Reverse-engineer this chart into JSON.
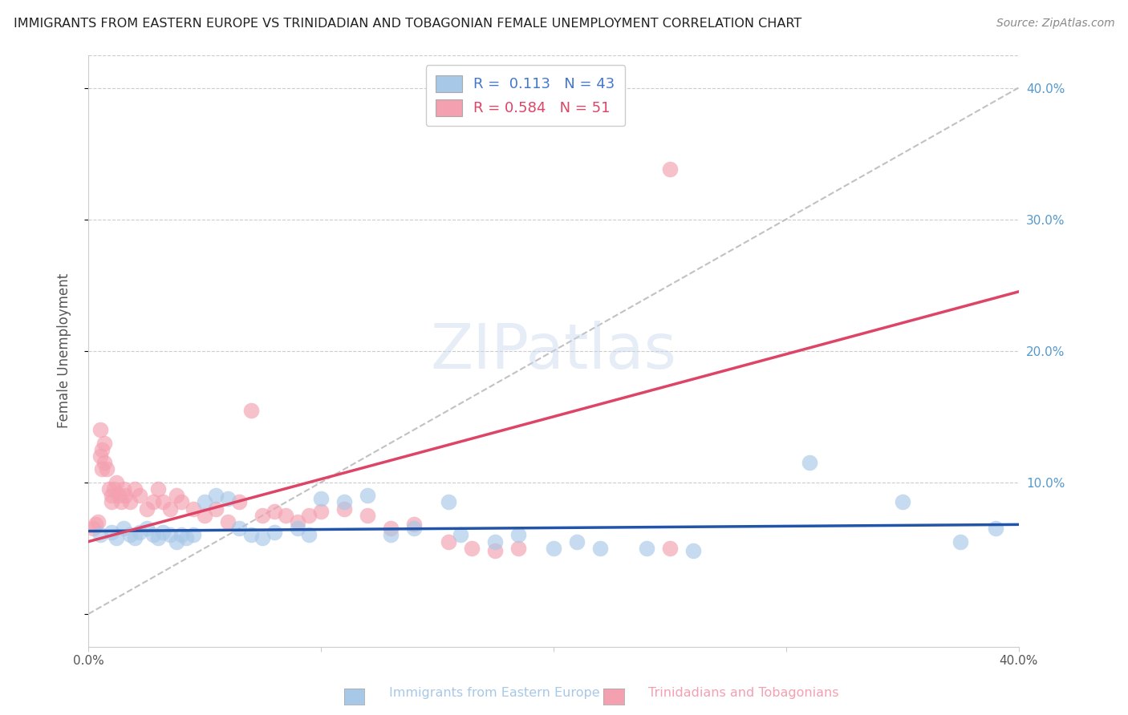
{
  "title": "IMMIGRANTS FROM EASTERN EUROPE VS TRINIDADIAN AND TOBAGONIAN FEMALE UNEMPLOYMENT CORRELATION CHART",
  "source": "Source: ZipAtlas.com",
  "ylabel": "Female Unemployment",
  "x_min": 0.0,
  "x_max": 0.4,
  "y_min": -0.025,
  "y_max": 0.425,
  "color_blue": "#a8c8e8",
  "color_pink": "#f4a0b0",
  "color_blue_line": "#2255aa",
  "color_pink_line": "#dd4466",
  "color_dashed_line": "#bbbbbb",
  "background_color": "#ffffff",
  "grid_color": "#cccccc",
  "title_color": "#222222",
  "right_axis_color": "#5599cc",
  "watermark": "ZIPatlas",
  "blue_x": [
    0.005,
    0.01,
    0.012,
    0.015,
    0.018,
    0.02,
    0.022,
    0.025,
    0.028,
    0.03,
    0.032,
    0.035,
    0.038,
    0.04,
    0.042,
    0.045,
    0.05,
    0.055,
    0.06,
    0.065,
    0.07,
    0.075,
    0.08,
    0.09,
    0.095,
    0.1,
    0.11,
    0.12,
    0.13,
    0.14,
    0.155,
    0.16,
    0.175,
    0.185,
    0.2,
    0.21,
    0.22,
    0.24,
    0.26,
    0.31,
    0.35,
    0.375,
    0.39
  ],
  "blue_y": [
    0.06,
    0.062,
    0.058,
    0.065,
    0.06,
    0.058,
    0.062,
    0.065,
    0.06,
    0.058,
    0.062,
    0.06,
    0.055,
    0.06,
    0.058,
    0.06,
    0.085,
    0.09,
    0.088,
    0.065,
    0.06,
    0.058,
    0.062,
    0.065,
    0.06,
    0.088,
    0.085,
    0.09,
    0.06,
    0.065,
    0.085,
    0.06,
    0.055,
    0.06,
    0.05,
    0.055,
    0.05,
    0.05,
    0.048,
    0.115,
    0.085,
    0.055,
    0.065
  ],
  "pink_x": [
    0.002,
    0.003,
    0.004,
    0.005,
    0.005,
    0.006,
    0.006,
    0.007,
    0.007,
    0.008,
    0.009,
    0.01,
    0.01,
    0.011,
    0.012,
    0.013,
    0.014,
    0.015,
    0.016,
    0.018,
    0.02,
    0.022,
    0.025,
    0.028,
    0.03,
    0.032,
    0.035,
    0.038,
    0.04,
    0.045,
    0.05,
    0.055,
    0.06,
    0.065,
    0.07,
    0.075,
    0.08,
    0.085,
    0.09,
    0.095,
    0.1,
    0.11,
    0.12,
    0.13,
    0.14,
    0.155,
    0.165,
    0.175,
    0.185,
    0.25,
    0.25
  ],
  "pink_y": [
    0.065,
    0.068,
    0.07,
    0.12,
    0.14,
    0.125,
    0.11,
    0.13,
    0.115,
    0.11,
    0.095,
    0.09,
    0.085,
    0.095,
    0.1,
    0.09,
    0.085,
    0.095,
    0.09,
    0.085,
    0.095,
    0.09,
    0.08,
    0.085,
    0.095,
    0.085,
    0.08,
    0.09,
    0.085,
    0.08,
    0.075,
    0.08,
    0.07,
    0.085,
    0.155,
    0.075,
    0.078,
    0.075,
    0.07,
    0.075,
    0.078,
    0.08,
    0.075,
    0.065,
    0.068,
    0.055,
    0.05,
    0.048,
    0.05,
    0.338,
    0.05
  ],
  "pink_line_x0": 0.0,
  "pink_line_y0": 0.055,
  "pink_line_x1": 0.4,
  "pink_line_y1": 0.245,
  "blue_line_x0": 0.0,
  "blue_line_y0": 0.063,
  "blue_line_x1": 0.4,
  "blue_line_y1": 0.068,
  "dash_line_x0": 0.0,
  "dash_line_y0": 0.0,
  "dash_line_x1": 0.4,
  "dash_line_y1": 0.4
}
